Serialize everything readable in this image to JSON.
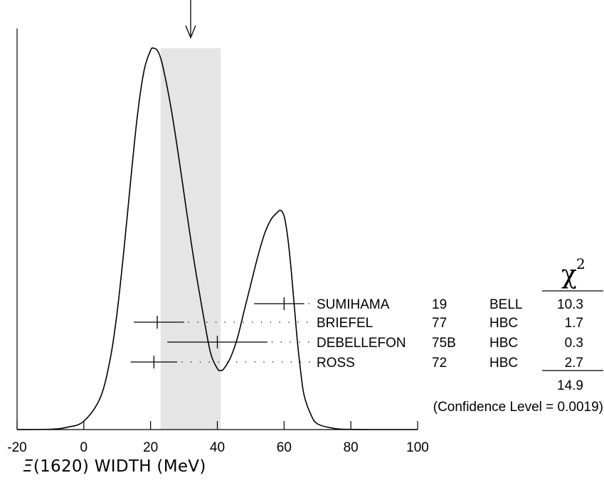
{
  "chart_data": {
    "type": "line",
    "title": "",
    "xlabel_symbol": "Ξ",
    "xlabel_rest": "(1620) WIDTH (MeV)",
    "xlim": [
      -20,
      100
    ],
    "x_ticks": [
      -20,
      0,
      20,
      40,
      60,
      80,
      100
    ],
    "x_tick_labels": [
      "-20",
      "0",
      "20",
      "40",
      "60",
      "80",
      "100"
    ],
    "ideogram_curve": {
      "x": [
        -20,
        -10,
        -5,
        0,
        5,
        8,
        10,
        12,
        14,
        16,
        18,
        20,
        21,
        22,
        23,
        24,
        26,
        28,
        30,
        32,
        34,
        36,
        38,
        40,
        41,
        42,
        44,
        46,
        48,
        50,
        52,
        54,
        56,
        58,
        59,
        60,
        61,
        62,
        63,
        64,
        65,
        66,
        68,
        70,
        75,
        80,
        90,
        100
      ],
      "y": [
        0.0,
        0.001,
        0.006,
        0.022,
        0.085,
        0.19,
        0.31,
        0.47,
        0.65,
        0.82,
        0.94,
        0.995,
        1.0,
        0.995,
        0.975,
        0.94,
        0.85,
        0.74,
        0.62,
        0.5,
        0.39,
        0.29,
        0.2,
        0.16,
        0.155,
        0.16,
        0.19,
        0.24,
        0.31,
        0.38,
        0.45,
        0.51,
        0.55,
        0.57,
        0.575,
        0.56,
        0.51,
        0.43,
        0.33,
        0.23,
        0.15,
        0.09,
        0.04,
        0.015,
        0.003,
        0.0005,
        0.0,
        0.0
      ]
    },
    "average_band": {
      "x_min": 23,
      "x_max": 41
    },
    "average_arrow_x": 32,
    "measurements": [
      {
        "name": "SUMIHAMA",
        "year": "19",
        "tech": "BELL",
        "chi2": "10.3",
        "value": 60,
        "err_minus": 9,
        "err_plus": 6
      },
      {
        "name": "BRIEFEL",
        "year": "77",
        "tech": "HBC",
        "chi2": "1.7",
        "value": 22,
        "err_minus": 7,
        "err_plus": 8
      },
      {
        "name": "DEBELLEFON",
        "year": "75B",
        "tech": "HBC",
        "chi2": "0.3",
        "value": 40,
        "err_minus": 15,
        "err_plus": 15
      },
      {
        "name": "ROSS",
        "year": "72",
        "tech": "HBC",
        "chi2": "2.7",
        "value": 21,
        "err_minus": 7,
        "err_plus": 7
      }
    ],
    "chi2_header": "χ",
    "chi2_header_exp": "2",
    "chi2_total": "14.9",
    "confidence_text": "(Confidence Level = 0.0019)"
  }
}
